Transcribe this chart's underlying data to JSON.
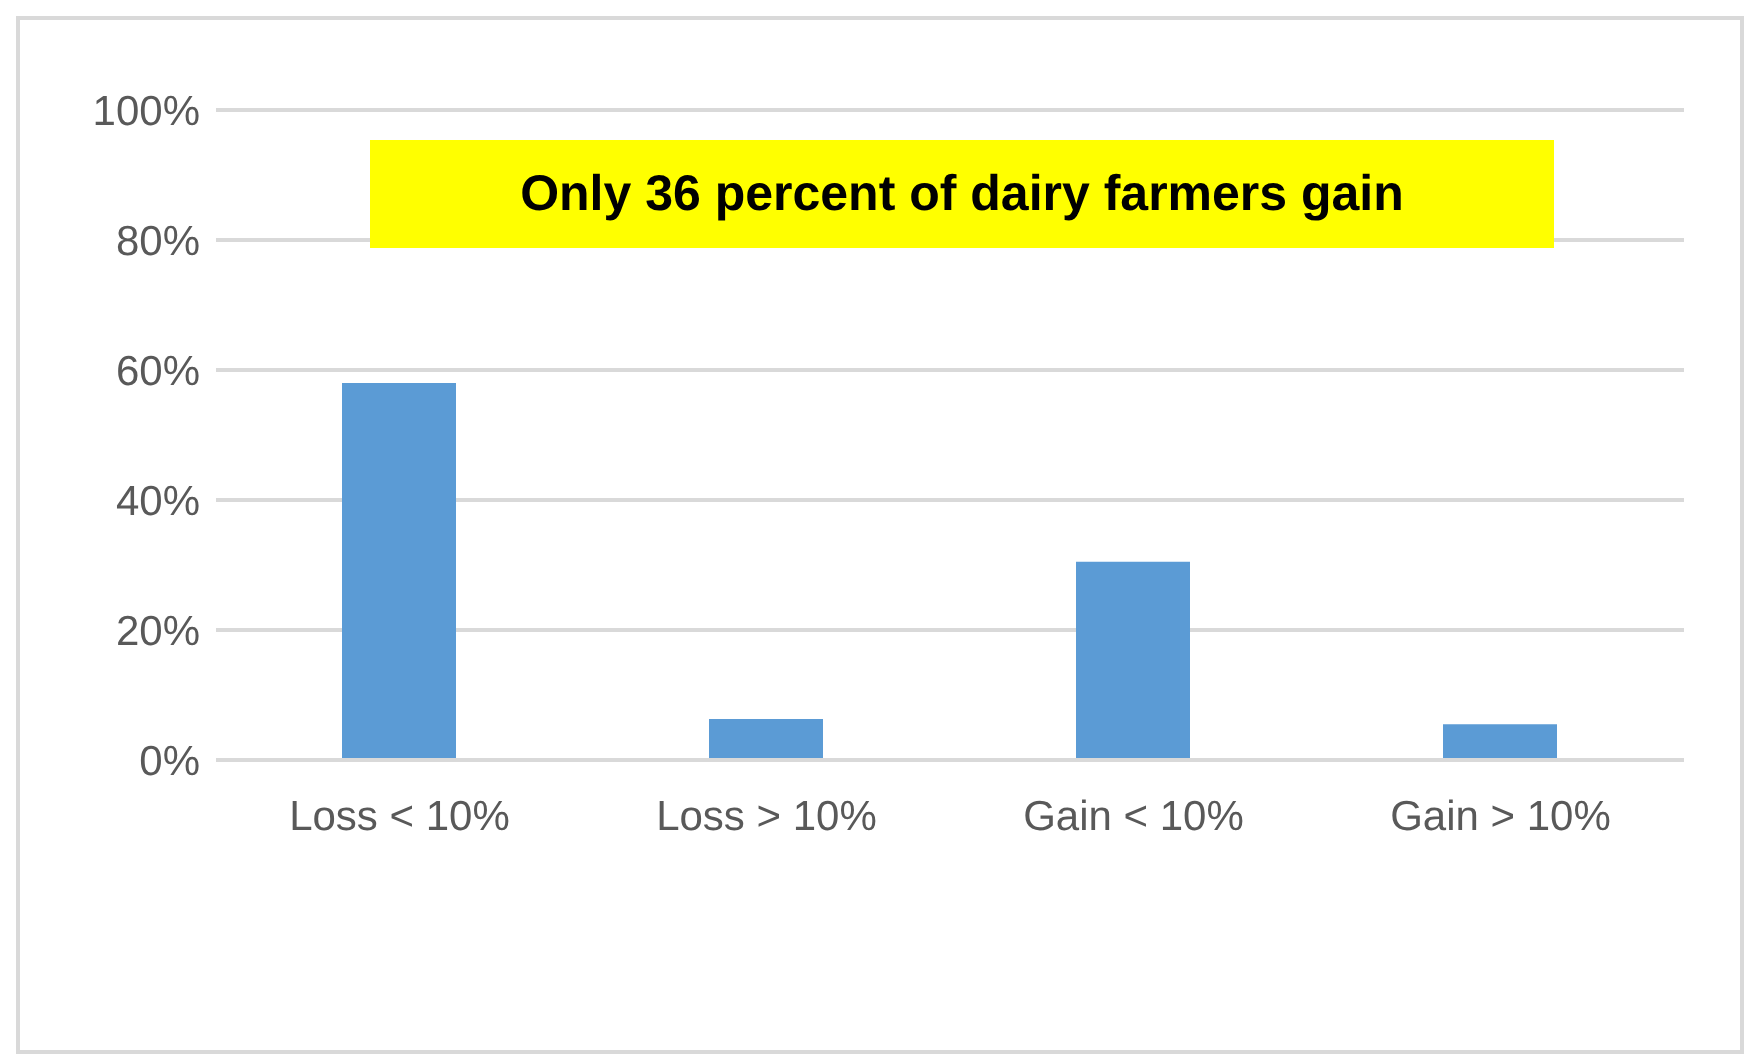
{
  "chart_data": {
    "type": "bar",
    "title": "Only 36 percent of dairy farmers gain",
    "categories": [
      "Loss < 10%",
      "Loss > 10%",
      "Gain < 10%",
      "Gain > 10%"
    ],
    "series": [
      {
        "color": "#5b9bd5",
        "values": [
          58,
          6.3,
          30.5,
          5.5
        ]
      }
    ],
    "ylim": [
      0,
      100
    ],
    "yticks": [
      {
        "value": 0,
        "label": "0%"
      },
      {
        "value": 20,
        "label": "20%"
      },
      {
        "value": 40,
        "label": "40%"
      },
      {
        "value": 60,
        "label": "60%"
      },
      {
        "value": 80,
        "label": "80%"
      },
      {
        "value": 100,
        "label": "100%"
      }
    ],
    "grid": "y"
  }
}
